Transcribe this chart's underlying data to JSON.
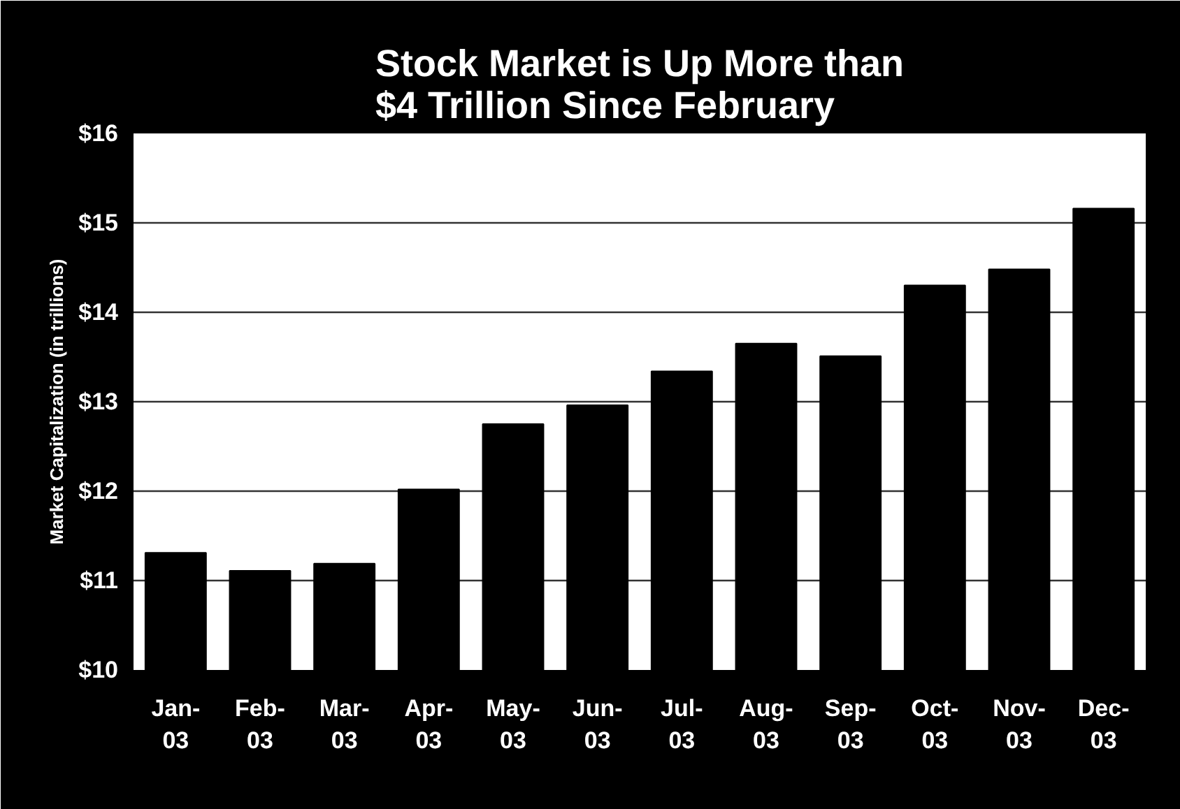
{
  "chart_data": {
    "type": "bar",
    "title": "Stock Market is Up More than\n$4 Trillion Since February",
    "ylabel": "Market Capitalization (in trillions)",
    "categories": [
      "Jan-03",
      "Feb-03",
      "Mar-03",
      "Apr-03",
      "May-03",
      "Jun-03",
      "Jul-03",
      "Aug-03",
      "Sep-03",
      "Oct-03",
      "Nov-03",
      "Dec-03"
    ],
    "values": [
      11.31,
      11.11,
      11.19,
      12.02,
      12.75,
      12.96,
      13.34,
      13.65,
      13.51,
      14.3,
      14.48,
      15.16
    ],
    "color": "#000000",
    "ylim": [
      10,
      16
    ],
    "yticks": [
      {
        "value": 10,
        "label": "$10"
      },
      {
        "value": 11,
        "label": "$11"
      },
      {
        "value": 12,
        "label": "$12"
      },
      {
        "value": 13,
        "label": "$13"
      },
      {
        "value": 14,
        "label": "$14"
      },
      {
        "value": 15,
        "label": "$15"
      },
      {
        "value": 16,
        "label": "$16"
      }
    ],
    "grid": "y"
  }
}
